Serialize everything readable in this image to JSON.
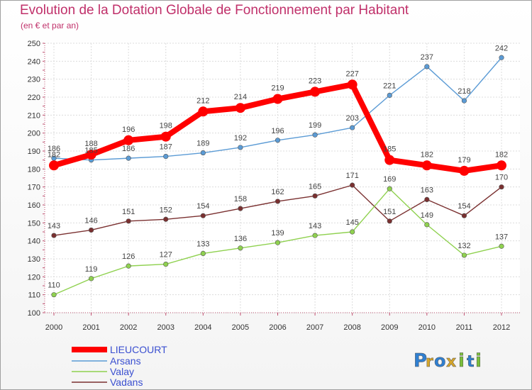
{
  "chart_data": {
    "type": "line",
    "title": "Evolution de la Dotation Globale de Fonctionnement par Habitant",
    "subtitle": "(en € et par an)",
    "xlabel": "",
    "ylabel": "",
    "x": [
      "2000",
      "2001",
      "2002",
      "2003",
      "2004",
      "2005",
      "2006",
      "2007",
      "2008",
      "2009",
      "2010",
      "2011",
      "2012"
    ],
    "ylim": [
      100,
      250
    ],
    "yticks": [
      100,
      110,
      120,
      130,
      140,
      150,
      160,
      170,
      180,
      190,
      200,
      210,
      220,
      230,
      240,
      250
    ],
    "grid": true,
    "legend_position": "bottom-left",
    "series": [
      {
        "name": "LIEUCOURT",
        "color": "#ff0000",
        "values": [
          182,
          188,
          196,
          198,
          212,
          214,
          219,
          223,
          227,
          185,
          182,
          179,
          182
        ]
      },
      {
        "name": "Arsans",
        "color": "#5b9bd5",
        "values": [
          186,
          185,
          186,
          187,
          189,
          192,
          196,
          199,
          203,
          221,
          237,
          218,
          242
        ]
      },
      {
        "name": "Valay",
        "color": "#8fd14f",
        "values": [
          110,
          119,
          126,
          127,
          133,
          136,
          139,
          143,
          145,
          169,
          149,
          132,
          137
        ]
      },
      {
        "name": "Vadans",
        "color": "#7a3030",
        "values": [
          143,
          146,
          151,
          152,
          154,
          158,
          162,
          165,
          171,
          151,
          163,
          154,
          170
        ]
      }
    ],
    "point_labels": [
      [
        "182",
        "188",
        "196",
        "198",
        "212",
        "214",
        "219",
        "223",
        "227",
        "185",
        "182",
        "179",
        "182"
      ],
      [
        "186",
        "185",
        "186",
        "187",
        "189",
        "192",
        "196",
        "199",
        "203",
        "221",
        "237",
        "218",
        "242"
      ],
      [
        "110",
        "119",
        "126",
        "127",
        "133",
        "136",
        "139",
        "143",
        "145",
        "169",
        "149",
        "132",
        "137"
      ],
      [
        "143",
        "146",
        "151",
        "152",
        "154",
        "158",
        "162",
        "165",
        "171",
        "151",
        "163",
        "154",
        "170"
      ]
    ]
  },
  "branding": {
    "logo_letters": [
      "P",
      "r",
      "o",
      "x",
      "i",
      "t",
      "i"
    ],
    "logo_colors": [
      "#2f7fd1",
      "#d6a62a",
      "#2f7fd1",
      "#d6a62a",
      "#7abf3a",
      "#2f7fd1",
      "#7abf3a"
    ]
  }
}
